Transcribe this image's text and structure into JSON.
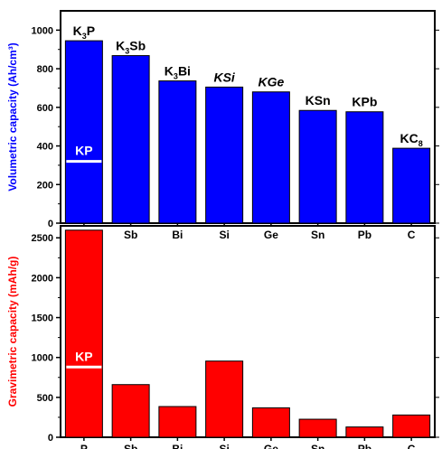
{
  "chart_data": [
    {
      "type": "bar",
      "categories": [
        "P",
        "Sb",
        "Bi",
        "Si",
        "Ge",
        "Sn",
        "Pb",
        "C"
      ],
      "values": [
        945,
        868,
        737,
        705,
        680,
        584,
        577,
        388
      ],
      "ylabel": "Volumetric capacity (Ah/cm³)",
      "ylim": [
        0,
        1100
      ],
      "yticks": [
        0,
        200,
        400,
        600,
        800,
        1000
      ],
      "bar_color": "#0000ff",
      "phase_labels": [
        {
          "base": "K",
          "sub": "3",
          "rest": "P",
          "italic": false
        },
        {
          "base": "K",
          "sub": "3",
          "rest": "Sb",
          "italic": false
        },
        {
          "base": "K",
          "sub": "3",
          "rest": "Bi",
          "italic": false
        },
        {
          "base": "KSi",
          "sub": "",
          "rest": "",
          "italic": true
        },
        {
          "base": "KGe",
          "sub": "",
          "rest": "",
          "italic": true
        },
        {
          "base": "KSn",
          "sub": "",
          "rest": "",
          "italic": false
        },
        {
          "base": "KPb",
          "sub": "",
          "rest": "",
          "italic": false
        },
        {
          "base": "KC",
          "sub": "8",
          "rest": "",
          "italic": false
        }
      ],
      "marker": {
        "category": "P",
        "value": 320,
        "label": "KP"
      }
    },
    {
      "type": "bar",
      "categories": [
        "P",
        "Sb",
        "Bi",
        "Si",
        "Ge",
        "Sn",
        "Pb",
        "C"
      ],
      "values": [
        2596,
        660,
        385,
        955,
        369,
        226,
        129,
        279
      ],
      "ylabel": "Gravimetric capacity (mAh/g)",
      "ylim": [
        0,
        2650
      ],
      "yticks": [
        0,
        500,
        1000,
        1500,
        2000,
        2500
      ],
      "bar_color": "#ff0000",
      "marker": {
        "category": "P",
        "value": 880,
        "label": "KP"
      }
    }
  ]
}
